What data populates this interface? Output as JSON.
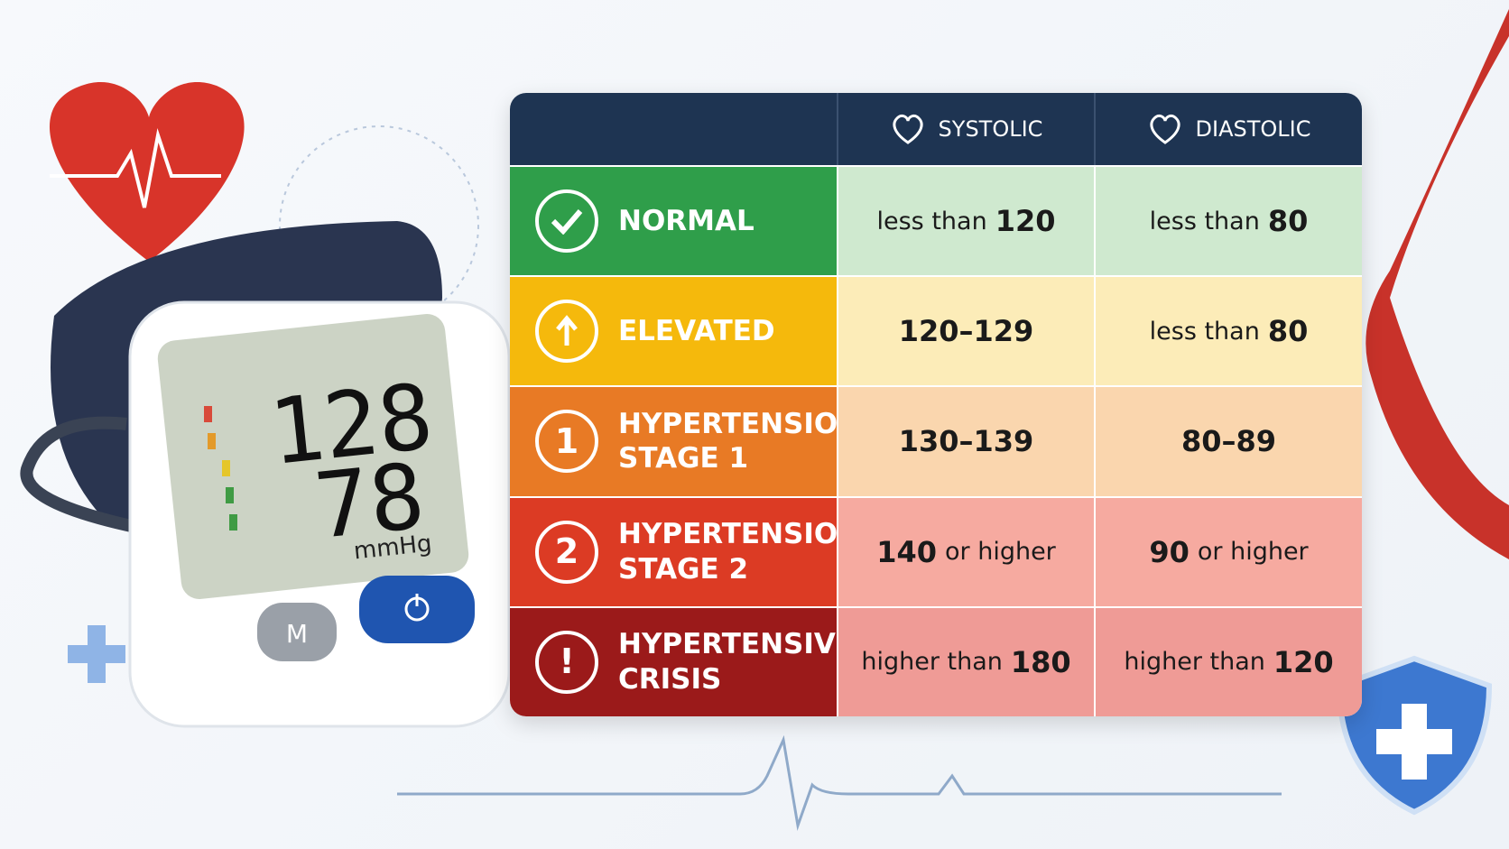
{
  "table": {
    "header": [
      "SYSTOLIC",
      "DIASTOLIC"
    ],
    "rows": [
      {
        "category": [
          "NORMAL"
        ],
        "systolic": [
          "less than",
          "120"
        ],
        "diastolic": [
          "less than",
          "80"
        ]
      },
      {
        "category": [
          "ELEVATED"
        ],
        "systolic": [
          "120–129"
        ],
        "diastolic": [
          "less than",
          "80"
        ]
      },
      {
        "category": [
          "HYPERTENSION",
          "STAGE 1"
        ],
        "badge": "1",
        "systolic": [
          "130–139"
        ],
        "diastolic": [
          "80–89"
        ]
      },
      {
        "category": [
          "HYPERTENSION",
          "STAGE 2"
        ],
        "badge": "2",
        "systolic": [
          "140",
          "or higher"
        ],
        "diastolic": [
          "90",
          "or higher"
        ]
      },
      {
        "category": [
          "HYPERTENSIVE",
          "CRISIS"
        ],
        "badge": "!",
        "systolic": [
          "higher than",
          "180"
        ],
        "diastolic": [
          "higher than",
          "120"
        ]
      }
    ]
  },
  "device": {
    "systolic": "128",
    "diastolic": "78",
    "unit": "mmHg",
    "button": "M"
  }
}
